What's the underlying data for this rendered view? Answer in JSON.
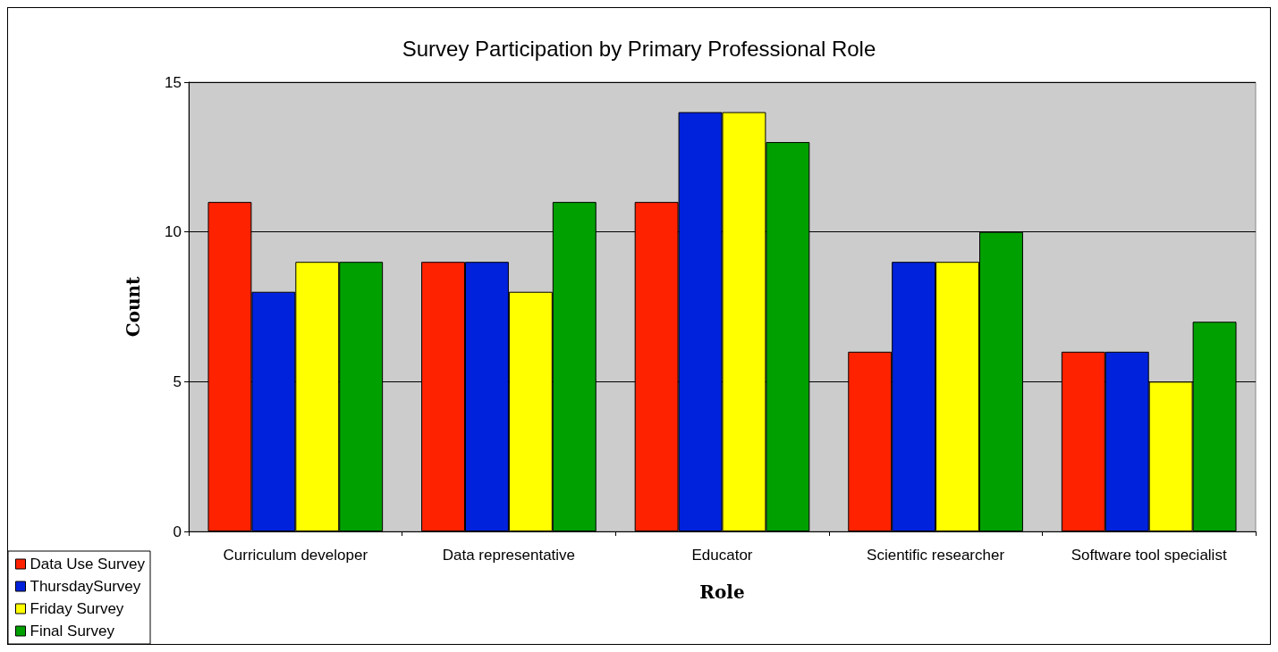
{
  "chart_data": {
    "type": "bar",
    "title": "Survey Participation by Primary Professional Role",
    "xlabel": "Role",
    "ylabel": "Count",
    "categories": [
      "Curriculum developer",
      "Data representative",
      "Educator",
      "Scientific researcher",
      "Software tool specialist"
    ],
    "series": [
      {
        "name": "Data Use Survey",
        "color": "#ff2200",
        "values": [
          11,
          9,
          11,
          6,
          6
        ]
      },
      {
        "name": "ThursdaySurvey",
        "color": "#0022dd",
        "values": [
          8,
          9,
          14,
          9,
          6
        ]
      },
      {
        "name": "Friday Survey",
        "color": "#ffff00",
        "values": [
          9,
          8,
          14,
          9,
          5
        ]
      },
      {
        "name": "Final Survey",
        "color": "#00a000",
        "values": [
          9,
          11,
          13,
          10,
          7
        ]
      }
    ],
    "ylim": [
      0,
      15
    ],
    "yticks": [
      0,
      5,
      10,
      15
    ],
    "grid": "y",
    "legend": "bottom left"
  }
}
